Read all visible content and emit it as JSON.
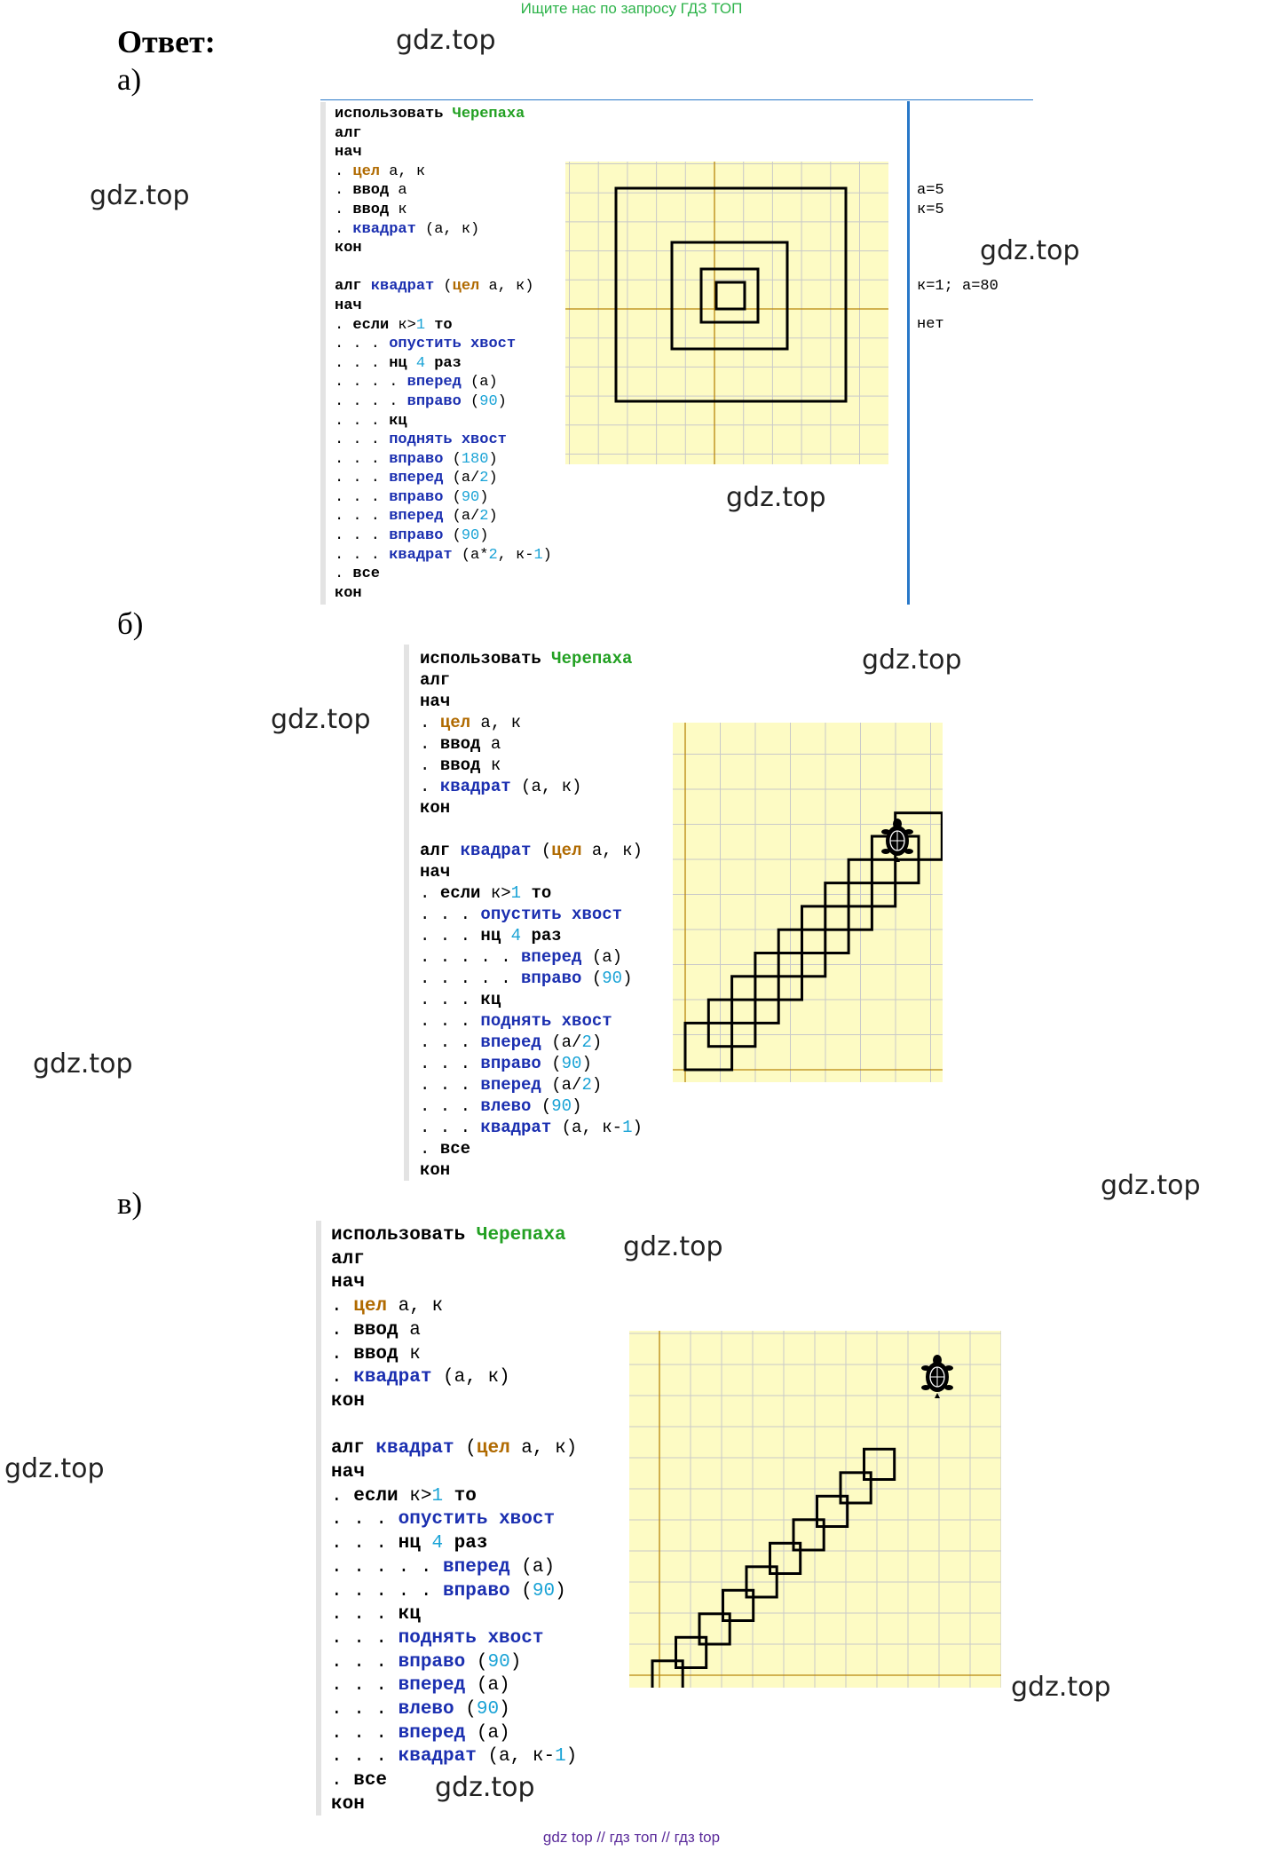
{
  "header": "Ищите нас по запросу ГДЗ ТОП",
  "answer_label": "Ответ:",
  "parts": {
    "a": "а)",
    "b": "б)",
    "c": "в)"
  },
  "watermark": "gdz.top",
  "footer": "gdz top  //  гдз топ  //  гдз top",
  "program_a": [
    "использовать Черепаха",
    "алг",
    "нач",
    ". цел a, к",
    ". ввод a",
    ". ввод к",
    ". квадрат (a, к)",
    "кон",
    "",
    "алг квадрат (цел a, к)",
    "нач",
    ". если к>1 то",
    ". . . опустить хвост",
    ". . . нц 4 раз",
    ". . . . вперед (a)",
    ". . . . вправо (90)",
    ". . . кц",
    ". . . поднять хвост",
    ". . . вправо (180)",
    ". . . вперед (a/2)",
    ". . . вправо (90)",
    ". . . вперед (a/2)",
    ". . . вправо (90)",
    ". . . квадрат (a*2, к-1)",
    ". все",
    "кон"
  ],
  "output_a": [
    "a=5",
    "к=5",
    "",
    "",
    "",
    "к=1; a=80",
    "",
    "нет"
  ],
  "program_b": [
    "использовать Черепаха",
    "алг",
    "нач",
    ". цел a, к",
    ". ввод a",
    ". ввод к",
    ". квадрат (a, к)",
    "кон",
    "",
    "алг квадрат (цел a, к)",
    "нач",
    ". если к>1 то",
    ". . . опустить хвост",
    ". . . нц 4 раз",
    ". . . . . вперед (a)",
    ". . . . . вправо (90)",
    ". . . кц",
    ". . . поднять хвост",
    ". . . вперед (a/2)",
    ". . . вправо (90)",
    ". . . вперед (a/2)",
    ". . . влево (90)",
    ". . . квадрат (a, к-1)",
    ". все",
    "кон"
  ],
  "program_c": [
    "использовать Черепаха",
    "алг",
    "нач",
    ". цел a, к",
    ". ввод a",
    ". ввод к",
    ". квадрат (a, к)",
    "кон",
    "",
    "алг квадрат (цел a, к)",
    "нач",
    ". если к>1 то",
    ". . . опустить хвост",
    ". . . нц 4 раз",
    ". . . . . вперед (a)",
    ". . . . . вправо (90)",
    ". . . кц",
    ". . . поднять хвост",
    ". . . вправо (90)",
    ". . . вперед (a)",
    ". . . влево (90)",
    ". . . вперед (a)",
    ". . . квадрат (a, к-1)",
    ". все",
    "кон"
  ],
  "colors": {
    "grid_bg": "#fdfbc4",
    "grid_line": "#c9c9c9",
    "axis": "#b8860b",
    "divider": "#2878c8"
  }
}
